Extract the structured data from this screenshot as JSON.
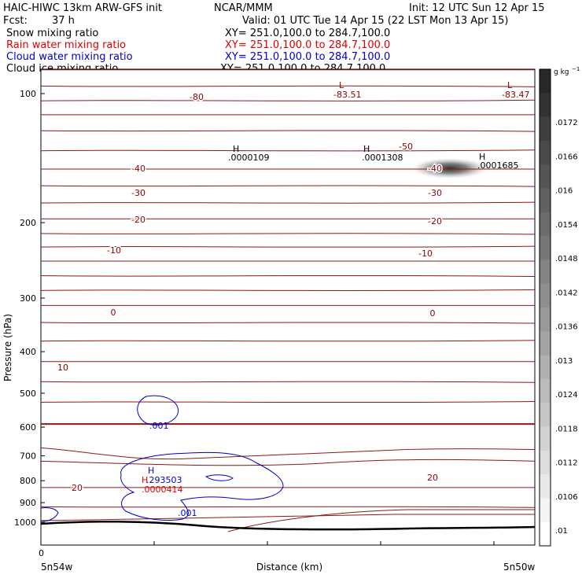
{
  "header": {
    "model": "HAIC-HIWC 13km ARW-GFS init",
    "center": "NCAR/MMM",
    "init": "Init: 12 UTC Sun 12 Apr 15",
    "fcst_label": "Fcst:",
    "fcst_value": "37 h",
    "valid": "Valid: 01 UTC Tue 14 Apr 15 (22 LST Mon 13 Apr 15)",
    "fields": [
      {
        "name": "Snow mixing ratio",
        "xy": "XY= 251.0,100.0 to 284.7,100.0",
        "color": "#000000"
      },
      {
        "name": "Rain water mixing ratio",
        "xy": "XY= 251.0,100.0 to 284.7,100.0",
        "color": "#e00000"
      },
      {
        "name": "Cloud water mixing ratio",
        "xy": "XY= 251.0,100.0 to 284.7,100.0",
        "color": "#0000cc"
      },
      {
        "name": "Cloud ice mixing ratio",
        "xy": "XY= 251.0,100.0 to 284.7,100.0",
        "color": "#000000"
      }
    ]
  },
  "chart_data": {
    "type": "cross-section contour",
    "ylabel": "Pressure (hPa)",
    "xlabel": "Distance (km)",
    "y_axis": "pressure, log scale, increasing downward",
    "y_ticks": [
      100,
      200,
      300,
      400,
      500,
      600,
      700,
      800,
      900,
      1000
    ],
    "x_tick_labels": {
      "zero": "0",
      "left": "5n54w",
      "right": "5n50w"
    },
    "colorbar": {
      "unit": "g kg",
      "unit_exp": "−1",
      "labels": [
        ".01",
        ".0106",
        ".0112",
        ".0118",
        ".0124",
        ".013",
        ".0136",
        ".0142",
        ".0148",
        ".0154",
        ".016",
        ".0166",
        ".0172"
      ]
    },
    "temperature_contour_labels": [
      {
        "text": "-80"
      },
      {
        "text": "-40"
      },
      {
        "text": "-30"
      },
      {
        "text": "-20"
      },
      {
        "text": "-10"
      },
      {
        "text": "0"
      },
      {
        "text": "10"
      },
      {
        "text": "20"
      },
      {
        "text": "-50"
      },
      {
        "text": "-40"
      },
      {
        "text": "-30"
      },
      {
        "text": "-20"
      },
      {
        "text": "-10"
      },
      {
        "text": "0"
      },
      {
        "text": "20"
      }
    ],
    "extrema": [
      {
        "kind": "L",
        "value": "-83.51",
        "color": "#8b0000"
      },
      {
        "kind": "L",
        "value": "-83.47",
        "color": "#8b0000"
      },
      {
        "kind": "H",
        "value": ".0000109",
        "color": "#000000"
      },
      {
        "kind": "H",
        "value": ".0001308",
        "color": "#000000"
      },
      {
        "kind": "H",
        "value": ".0001685",
        "color": "#000000"
      },
      {
        "kind": "H",
        "value": ".293503",
        "color": "#0000cc"
      },
      {
        "kind": "H",
        "value": ".0000414",
        "color": "#e00000"
      }
    ],
    "cloud_water_labels": [
      ".001",
      ".001"
    ],
    "isotherm_pressures_hpa": [
      80,
      88,
      96,
      104,
      112,
      122,
      136,
      150,
      164,
      180,
      196,
      212,
      228,
      246,
      266,
      288,
      312,
      342,
      378,
      422,
      470,
      525,
      590,
      665,
      745,
      830,
      920,
      975,
      1000
    ]
  }
}
